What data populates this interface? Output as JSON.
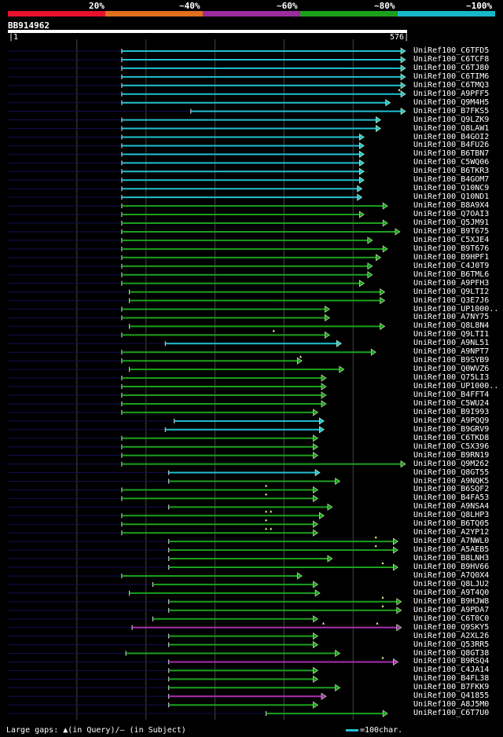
{
  "legend": {
    "colors": [
      "#e8122c",
      "#e0701c",
      "#9a2ca0",
      "#1ca01c",
      "#18b8c8"
    ],
    "labels": [
      "20%",
      "~40%",
      "~60%",
      "~80%",
      "~100%"
    ]
  },
  "query": {
    "id": "BB914962",
    "start": "1",
    "end": "576",
    "length": 576
  },
  "hits": [
    {
      "name": "UniRef100_C6TFD5",
      "q_start": 165,
      "q_end": 576,
      "color": "cyan",
      "marks": []
    },
    {
      "name": "UniRef100_C6TCF8",
      "q_start": 165,
      "q_end": 576,
      "color": "cyan",
      "marks": []
    },
    {
      "name": "UniRef100_C6TJ80",
      "q_start": 165,
      "q_end": 576,
      "color": "cyan",
      "marks": []
    },
    {
      "name": "UniRef100_C6TIM6",
      "q_start": 165,
      "q_end": 576,
      "color": "cyan",
      "marks": []
    },
    {
      "name": "UniRef100_C6TMQ3",
      "q_start": 165,
      "q_end": 576,
      "color": "cyan",
      "marks": []
    },
    {
      "name": "UniRef100_A9PFF5",
      "q_start": 165,
      "q_end": 576,
      "color": "cyan",
      "marks": [
        567
      ]
    },
    {
      "name": "UniRef100_Q9M4H5",
      "q_start": 165,
      "q_end": 554,
      "color": "cyan",
      "marks": []
    },
    {
      "name": "UniRef100_B7FKS5",
      "q_start": 265,
      "q_end": 576,
      "color": "cyan",
      "marks": []
    },
    {
      "name": "UniRef100_Q9LZK9",
      "q_start": 165,
      "q_end": 540,
      "color": "cyan",
      "marks": []
    },
    {
      "name": "UniRef100_Q8LAW1",
      "q_start": 165,
      "q_end": 540,
      "color": "cyan",
      "marks": []
    },
    {
      "name": "UniRef100_B4GOI2",
      "q_start": 165,
      "q_end": 516,
      "color": "cyan",
      "marks": []
    },
    {
      "name": "UniRef100_B4FU26",
      "q_start": 165,
      "q_end": 516,
      "color": "cyan",
      "marks": []
    },
    {
      "name": "UniRef100_B6TBN7",
      "q_start": 165,
      "q_end": 516,
      "color": "cyan",
      "marks": []
    },
    {
      "name": "UniRef100_C5WQ06",
      "q_start": 165,
      "q_end": 516,
      "color": "cyan",
      "marks": []
    },
    {
      "name": "UniRef100_B6TKR3",
      "q_start": 165,
      "q_end": 516,
      "color": "cyan",
      "marks": []
    },
    {
      "name": "UniRef100_B4GOM7",
      "q_start": 165,
      "q_end": 516,
      "color": "cyan",
      "marks": []
    },
    {
      "name": "UniRef100_Q10NC9",
      "q_start": 165,
      "q_end": 513,
      "color": "cyan",
      "marks": []
    },
    {
      "name": "UniRef100_Q10ND1",
      "q_start": 165,
      "q_end": 513,
      "color": "cyan",
      "marks": []
    },
    {
      "name": "UniRef100_B8A9X4",
      "q_start": 165,
      "q_end": 550,
      "color": "green",
      "marks": []
    },
    {
      "name": "UniRef100_Q7OAI3",
      "q_start": 165,
      "q_end": 516,
      "color": "green",
      "marks": []
    },
    {
      "name": "UniRef100_Q5JM91",
      "q_start": 165,
      "q_end": 550,
      "color": "green",
      "marks": []
    },
    {
      "name": "UniRef100_B9T675",
      "q_start": 165,
      "q_end": 568,
      "color": "green",
      "marks": []
    },
    {
      "name": "UniRef100_C5XJE4",
      "q_start": 165,
      "q_end": 528,
      "color": "green",
      "marks": []
    },
    {
      "name": "UniRef100_B9T676",
      "q_start": 165,
      "q_end": 550,
      "color": "green",
      "marks": []
    },
    {
      "name": "UniRef100_B9HPF1",
      "q_start": 165,
      "q_end": 540,
      "color": "green",
      "marks": []
    },
    {
      "name": "UniRef100_C4J0T9",
      "q_start": 165,
      "q_end": 528,
      "color": "green",
      "marks": []
    },
    {
      "name": "UniRef100_B6TML6",
      "q_start": 165,
      "q_end": 528,
      "color": "green",
      "marks": []
    },
    {
      "name": "UniRef100_A9PFH3",
      "q_start": 165,
      "q_end": 516,
      "color": "green",
      "marks": []
    },
    {
      "name": "UniRef100_Q9LTI2",
      "q_start": 176,
      "q_end": 546,
      "color": "green",
      "marks": []
    },
    {
      "name": "UniRef100_Q3E7J6",
      "q_start": 176,
      "q_end": 546,
      "color": "green",
      "marks": []
    },
    {
      "name": "UniRef100_UP1000..",
      "q_start": 165,
      "q_end": 466,
      "color": "green",
      "marks": []
    },
    {
      "name": "UniRef100_A7NY75",
      "q_start": 165,
      "q_end": 466,
      "color": "green",
      "marks": []
    },
    {
      "name": "UniRef100_Q8L8N4",
      "q_start": 176,
      "q_end": 546,
      "color": "green",
      "marks": []
    },
    {
      "name": "UniRef100_Q9LTI1",
      "q_start": 165,
      "q_end": 466,
      "color": "green",
      "marks": [
        385
      ]
    },
    {
      "name": "UniRef100_A9NL51",
      "q_start": 228,
      "q_end": 483,
      "color": "cyan",
      "marks": []
    },
    {
      "name": "UniRef100_A9NPT7",
      "q_start": 165,
      "q_end": 533,
      "color": "green",
      "marks": []
    },
    {
      "name": "UniRef100_B9SYB9",
      "q_start": 165,
      "q_end": 426,
      "color": "green",
      "marks": [
        424
      ]
    },
    {
      "name": "UniRef100_Q0WVZ6",
      "q_start": 176,
      "q_end": 487,
      "color": "green",
      "marks": []
    },
    {
      "name": "UniRef100_Q75LI3",
      "q_start": 165,
      "q_end": 461,
      "color": "green",
      "marks": []
    },
    {
      "name": "UniRef100_UP1000..",
      "q_start": 165,
      "q_end": 461,
      "color": "green",
      "marks": []
    },
    {
      "name": "UniRef100_B4FFT4",
      "q_start": 165,
      "q_end": 461,
      "color": "green",
      "marks": []
    },
    {
      "name": "UniRef100_C5WU24",
      "q_start": 165,
      "q_end": 461,
      "color": "green",
      "marks": []
    },
    {
      "name": "UniRef100_B9I993",
      "q_start": 165,
      "q_end": 449,
      "color": "green",
      "marks": []
    },
    {
      "name": "UniRef100_A9PQQ9",
      "q_start": 241,
      "q_end": 458,
      "color": "cyan",
      "marks": []
    },
    {
      "name": "UniRef100_B9GRV9",
      "q_start": 228,
      "q_end": 458,
      "color": "cyan",
      "marks": []
    },
    {
      "name": "UniRef100_C6TKD8",
      "q_start": 165,
      "q_end": 449,
      "color": "green",
      "marks": []
    },
    {
      "name": "UniRef100_C5X396",
      "q_start": 165,
      "q_end": 449,
      "color": "green",
      "marks": []
    },
    {
      "name": "UniRef100_B9RN19",
      "q_start": 165,
      "q_end": 449,
      "color": "green",
      "marks": []
    },
    {
      "name": "UniRef100_Q9M262",
      "q_start": 165,
      "q_end": 576,
      "color": "green",
      "marks": []
    },
    {
      "name": "UniRef100_Q8GT55",
      "q_start": 233,
      "q_end": 452,
      "color": "cyan",
      "marks": []
    },
    {
      "name": "UniRef100_A9NQK5",
      "q_start": 233,
      "q_end": 481,
      "color": "green",
      "marks": []
    },
    {
      "name": "UniRef100_B6SQF2",
      "q_start": 165,
      "q_end": 449,
      "color": "green",
      "marks": [
        374
      ]
    },
    {
      "name": "UniRef100_B4FA53",
      "q_start": 165,
      "q_end": 449,
      "color": "green",
      "marks": [
        374
      ]
    },
    {
      "name": "UniRef100_A9NSA4",
      "q_start": 233,
      "q_end": 470,
      "color": "green",
      "marks": []
    },
    {
      "name": "UniRef100_Q8LHP3",
      "q_start": 165,
      "q_end": 458,
      "color": "green",
      "marks": [
        374,
        381
      ]
    },
    {
      "name": "UniRef100_B6TQ05",
      "q_start": 165,
      "q_end": 449,
      "color": "green",
      "marks": [
        374
      ]
    },
    {
      "name": "UniRef100_A2YP12",
      "q_start": 165,
      "q_end": 449,
      "color": "green",
      "marks": [
        374,
        381
      ]
    },
    {
      "name": "UniRef100_A7NWL0",
      "q_start": 233,
      "q_end": 565,
      "color": "green",
      "marks": [
        533
      ]
    },
    {
      "name": "UniRef100_A5AEB5",
      "q_start": 233,
      "q_end": 565,
      "color": "green",
      "marks": [
        533
      ]
    },
    {
      "name": "UniRef100_B8LNH3",
      "q_start": 233,
      "q_end": 470,
      "color": "green",
      "marks": []
    },
    {
      "name": "UniRef100_B9HV66",
      "q_start": 233,
      "q_end": 565,
      "color": "green",
      "marks": [
        543
      ]
    },
    {
      "name": "UniRef100_A7Q0X4",
      "q_start": 165,
      "q_end": 426,
      "color": "green",
      "marks": []
    },
    {
      "name": "UniRef100_Q8LJU2",
      "q_start": 210,
      "q_end": 449,
      "color": "green",
      "marks": []
    },
    {
      "name": "UniRef100_A9T4Q0",
      "q_start": 176,
      "q_end": 452,
      "color": "green",
      "marks": []
    },
    {
      "name": "UniRef100_B9HJW8",
      "q_start": 233,
      "q_end": 570,
      "color": "green",
      "marks": [
        543
      ]
    },
    {
      "name": "UniRef100_A9PDA7",
      "q_start": 233,
      "q_end": 570,
      "color": "green",
      "marks": [
        543
      ]
    },
    {
      "name": "UniRef100_C6T0C0",
      "q_start": 210,
      "q_end": 449,
      "color": "green",
      "marks": []
    },
    {
      "name": "UniRef100_Q9SKY5",
      "q_start": 180,
      "q_end": 570,
      "color": "magenta",
      "marks": [
        457,
        535
      ]
    },
    {
      "name": "UniRef100_A2XL26",
      "q_start": 233,
      "q_end": 449,
      "color": "green",
      "marks": []
    },
    {
      "name": "UniRef100_Q53RR5",
      "q_start": 233,
      "q_end": 449,
      "color": "green",
      "marks": []
    },
    {
      "name": "UniRef100_Q8GT38",
      "q_start": 171,
      "q_end": 481,
      "color": "green",
      "marks": []
    },
    {
      "name": "UniRef100_B9RSQ4",
      "q_start": 233,
      "q_end": 565,
      "color": "magenta",
      "marks": [
        543
      ]
    },
    {
      "name": "UniRef100_C4JA14",
      "q_start": 233,
      "q_end": 449,
      "color": "green",
      "marks": []
    },
    {
      "name": "UniRef100_B4FL38",
      "q_start": 233,
      "q_end": 449,
      "color": "green",
      "marks": []
    },
    {
      "name": "UniRef100_B7FKK9",
      "q_start": 233,
      "q_end": 481,
      "color": "green",
      "marks": []
    },
    {
      "name": "UniRef100_Q41855",
      "q_start": 233,
      "q_end": 461,
      "color": "magenta",
      "marks": []
    },
    {
      "name": "UniRef100_A8J5M0",
      "q_start": 233,
      "q_end": 449,
      "color": "green",
      "marks": []
    },
    {
      "name": "UniRef100_C6T7U0",
      "q_start": 374,
      "q_end": 550,
      "color": "green",
      "marks": []
    }
  ],
  "palette": {
    "cyan": "#22c0d0",
    "green": "#1ca01c",
    "magenta": "#a830b0",
    "mark": "#ffffa0",
    "grid": "#444444",
    "track": "#101050"
  },
  "footer": {
    "gaps_text": "Large gaps: ▲(in Query)/– (in Subject)",
    "scale_text": "=100char."
  }
}
